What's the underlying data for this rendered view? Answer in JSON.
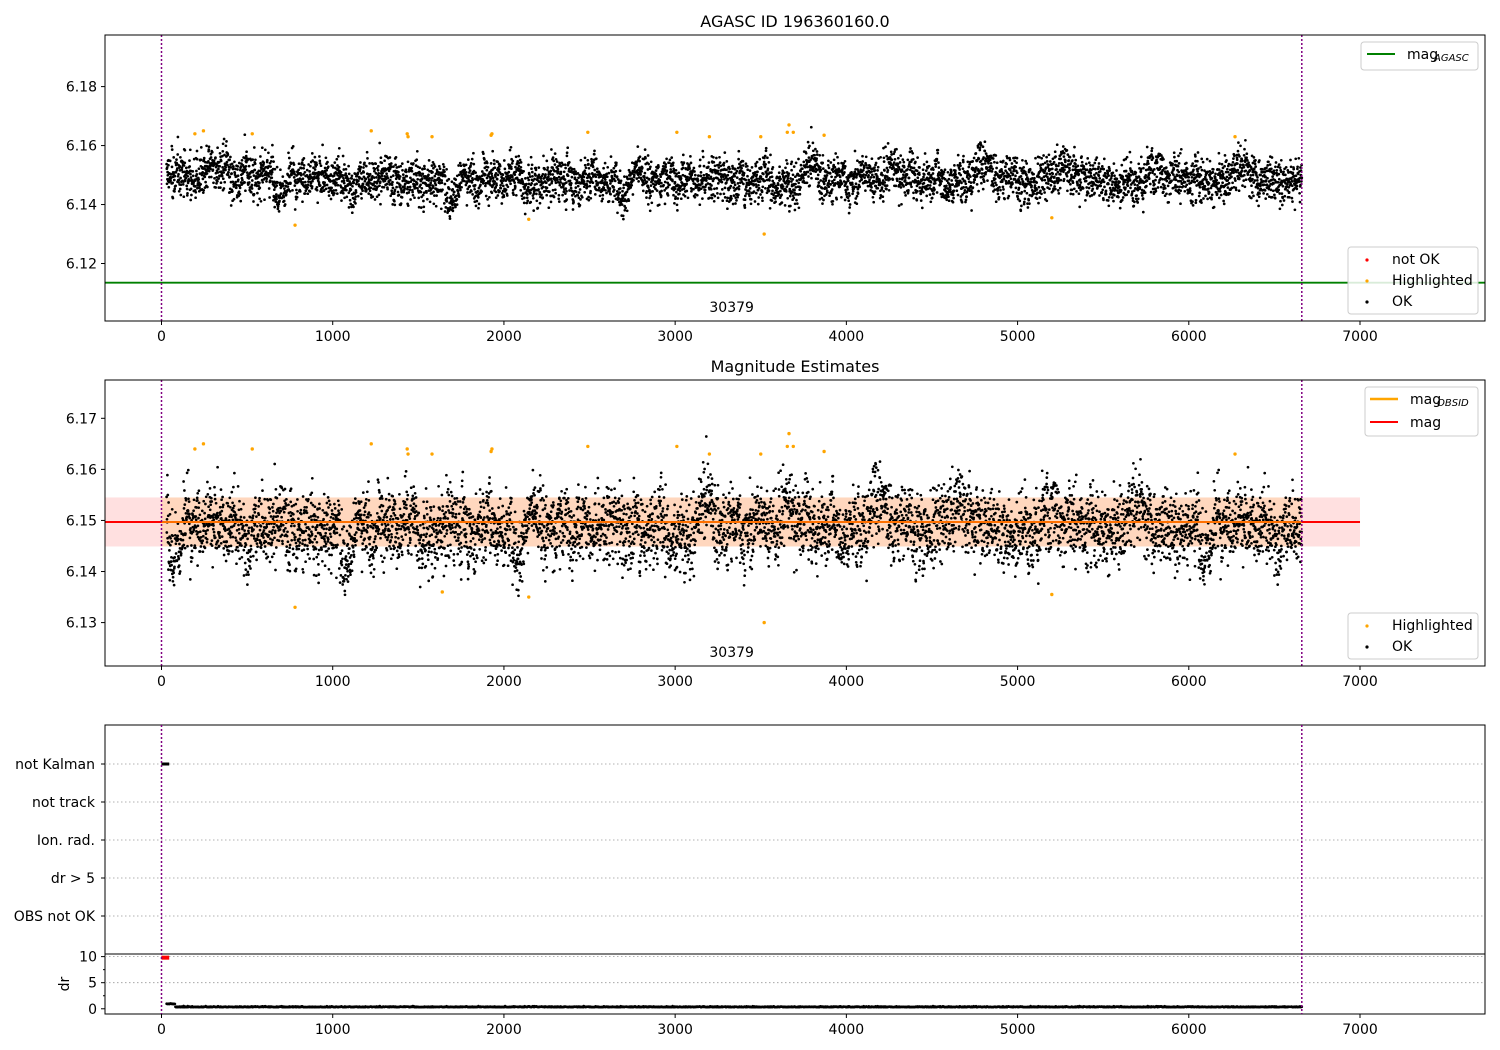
{
  "chart_data": [
    {
      "id": "panel1",
      "type": "scatter",
      "title": "AGASC ID 196360160.0",
      "xlim": [
        -330,
        7730
      ],
      "ylim": [
        6.1005,
        6.1975
      ],
      "xticks": [
        0,
        1000,
        2000,
        3000,
        4000,
        5000,
        6000,
        7000
      ],
      "yticks": [
        6.12,
        6.14,
        6.16,
        6.18
      ],
      "ytick_labels": [
        "6.12",
        "6.14",
        "6.16",
        "6.18"
      ],
      "obs_boundaries": [
        0,
        6660
      ],
      "obsid_label": "30379",
      "obsid_label_x": 3330,
      "mag_agasc": {
        "value": 6.1135,
        "x_range": [
          -330,
          7730
        ],
        "color": "#008000"
      },
      "ok_points": {
        "x_range": [
          30,
          6660
        ],
        "base": 6.1495,
        "amplitude": 0.0048,
        "color": "#000000"
      },
      "highlighted": [
        [
          195,
          6.164
        ],
        [
          245,
          6.165
        ],
        [
          530,
          6.164
        ],
        [
          780,
          6.133
        ],
        [
          1225,
          6.165
        ],
        [
          1435,
          6.164
        ],
        [
          1440,
          6.163
        ],
        [
          1580,
          6.163
        ],
        [
          1925,
          6.1635
        ],
        [
          1930,
          6.164
        ],
        [
          2145,
          6.135
        ],
        [
          2490,
          6.1645
        ],
        [
          3010,
          6.1645
        ],
        [
          3200,
          6.163
        ],
        [
          3500,
          6.163
        ],
        [
          3520,
          6.13
        ],
        [
          3655,
          6.1645
        ],
        [
          3665,
          6.167
        ],
        [
          3690,
          6.1645
        ],
        [
          3870,
          6.1635
        ],
        [
          5200,
          6.1355
        ],
        [
          6270,
          6.163
        ]
      ],
      "highlight_color": "#FFA500",
      "legend_top": [
        {
          "label": "mag",
          "sub": "AGASC",
          "color": "#008000"
        }
      ],
      "legend_bottom": [
        {
          "label": "not OK",
          "color": "#FF0000"
        },
        {
          "label": "Highlighted",
          "color": "#FFA500"
        },
        {
          "label": "OK",
          "color": "#000000"
        }
      ]
    },
    {
      "id": "panel2",
      "type": "scatter",
      "title": "Magnitude Estimates",
      "xlim": [
        -330,
        7730
      ],
      "ylim": [
        6.1215,
        6.1775
      ],
      "xticks": [
        0,
        1000,
        2000,
        3000,
        4000,
        5000,
        6000,
        7000
      ],
      "yticks": [
        6.13,
        6.14,
        6.15,
        6.16,
        6.17
      ],
      "ytick_labels": [
        "6.13",
        "6.14",
        "6.15",
        "6.16",
        "6.17"
      ],
      "obs_boundaries": [
        0,
        6660
      ],
      "obsid_label": "30379",
      "obsid_label_x": 3330,
      "mag": {
        "value": 6.1497,
        "band": [
          6.1449,
          6.1545
        ],
        "x_range": [
          -330,
          7000
        ],
        "color": "#FF0000"
      },
      "mag_obsid": {
        "value": 6.1497,
        "x_range": [
          0,
          6660
        ],
        "color": "#FFA500"
      },
      "ok_points": {
        "x_range": [
          30,
          6660
        ],
        "base": 6.1497,
        "amplitude": 0.0048,
        "color": "#000000"
      },
      "highlighted": [
        [
          195,
          6.164
        ],
        [
          245,
          6.165
        ],
        [
          530,
          6.164
        ],
        [
          780,
          6.133
        ],
        [
          1225,
          6.165
        ],
        [
          1435,
          6.164
        ],
        [
          1440,
          6.163
        ],
        [
          1580,
          6.163
        ],
        [
          1640,
          6.136
        ],
        [
          1925,
          6.1635
        ],
        [
          1930,
          6.164
        ],
        [
          2145,
          6.135
        ],
        [
          2490,
          6.1645
        ],
        [
          3010,
          6.1645
        ],
        [
          3200,
          6.163
        ],
        [
          3500,
          6.163
        ],
        [
          3520,
          6.13
        ],
        [
          3655,
          6.1645
        ],
        [
          3665,
          6.167
        ],
        [
          3690,
          6.1645
        ],
        [
          3870,
          6.1635
        ],
        [
          5200,
          6.1355
        ],
        [
          6270,
          6.163
        ]
      ],
      "highlight_color": "#FFA500",
      "legend_top": [
        {
          "label": "mag",
          "sub": "OBSID",
          "color": "#FFA500"
        },
        {
          "label": "mag",
          "sub": "",
          "color": "#FF0000"
        }
      ],
      "legend_bottom": [
        {
          "label": "Highlighted",
          "color": "#FFA500"
        },
        {
          "label": "OK",
          "color": "#000000"
        }
      ]
    },
    {
      "id": "panel3",
      "type": "scatter",
      "xlim": [
        -330,
        7730
      ],
      "flag_rows": [
        "not Kalman",
        "not track",
        "Ion. rad.",
        "dr > 5",
        "OBS not OK"
      ],
      "obs_boundaries": [
        0,
        6660
      ],
      "not_kalman_x_range": [
        0,
        45
      ],
      "dr": {
        "ylim": [
          -1,
          10.5
        ],
        "yticks": [
          0,
          5,
          10
        ],
        "ytick_labels": [
          "0",
          "5",
          "10"
        ],
        "ylabel": "dr",
        "x_range": [
          30,
          6660
        ],
        "base": 0.3,
        "outliers_x_range": [
          0,
          45
        ],
        "outlier_value": 9.8,
        "outlier_color": "#FF0000"
      },
      "xticks": [
        0,
        1000,
        2000,
        3000,
        4000,
        5000,
        6000,
        7000
      ]
    }
  ]
}
